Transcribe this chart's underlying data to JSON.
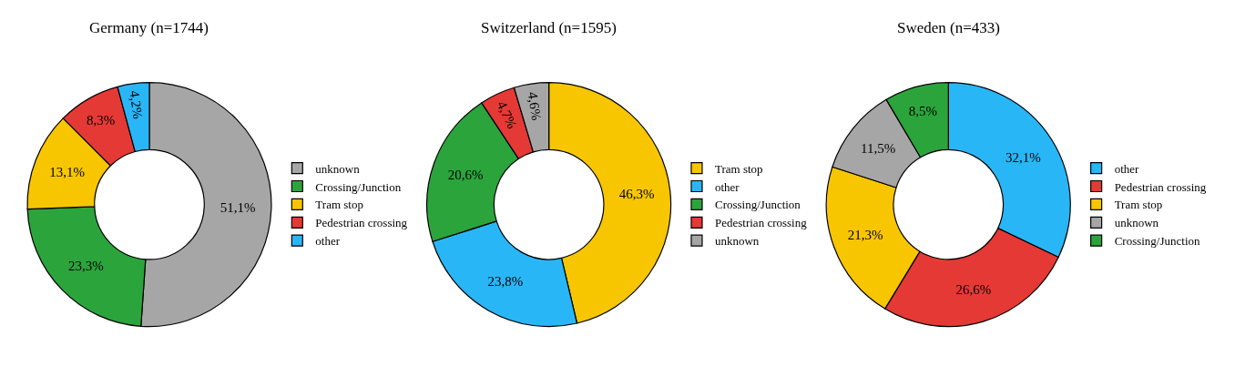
{
  "chart_data": [
    {
      "type": "donut",
      "title": "Germany (n=1744)",
      "categories": [
        "unknown",
        "Crossing/Junction",
        "Tram stop",
        "Pedestrian crossing",
        "other"
      ],
      "values": [
        51.1,
        23.3,
        13.1,
        8.3,
        4.2
      ],
      "value_labels": [
        "51,1%",
        "23,3%",
        "13,1%",
        "8,3%",
        "4,2%"
      ],
      "colors": [
        "#a6a6a6",
        "#2ca43c",
        "#f7c600",
        "#e53935",
        "#29b6f6"
      ],
      "legend": "right"
    },
    {
      "type": "donut",
      "title": "Switzerland (n=1595)",
      "categories": [
        "Tram stop",
        "other",
        "Crossing/Junction",
        "Pedestrian crossing",
        "unknown"
      ],
      "values": [
        46.3,
        23.8,
        20.6,
        4.7,
        4.6
      ],
      "value_labels": [
        "46,3%",
        "23,8%",
        "20,6%",
        "4,7%",
        "4,6%"
      ],
      "colors": [
        "#f7c600",
        "#29b6f6",
        "#2ca43c",
        "#e53935",
        "#a6a6a6"
      ],
      "legend": "right"
    },
    {
      "type": "donut",
      "title": "Sweden (n=433)",
      "categories": [
        "other",
        "Pedestrian crossing",
        "Tram stop",
        "unknown",
        "Crossing/Junction"
      ],
      "values": [
        32.1,
        26.6,
        21.3,
        11.5,
        8.5
      ],
      "value_labels": [
        "32,1%",
        "26,6%",
        "21,3%",
        "11,5%",
        "8,5%"
      ],
      "colors": [
        "#29b6f6",
        "#e53935",
        "#f7c600",
        "#a6a6a6",
        "#2ca43c"
      ],
      "legend": "right"
    }
  ]
}
